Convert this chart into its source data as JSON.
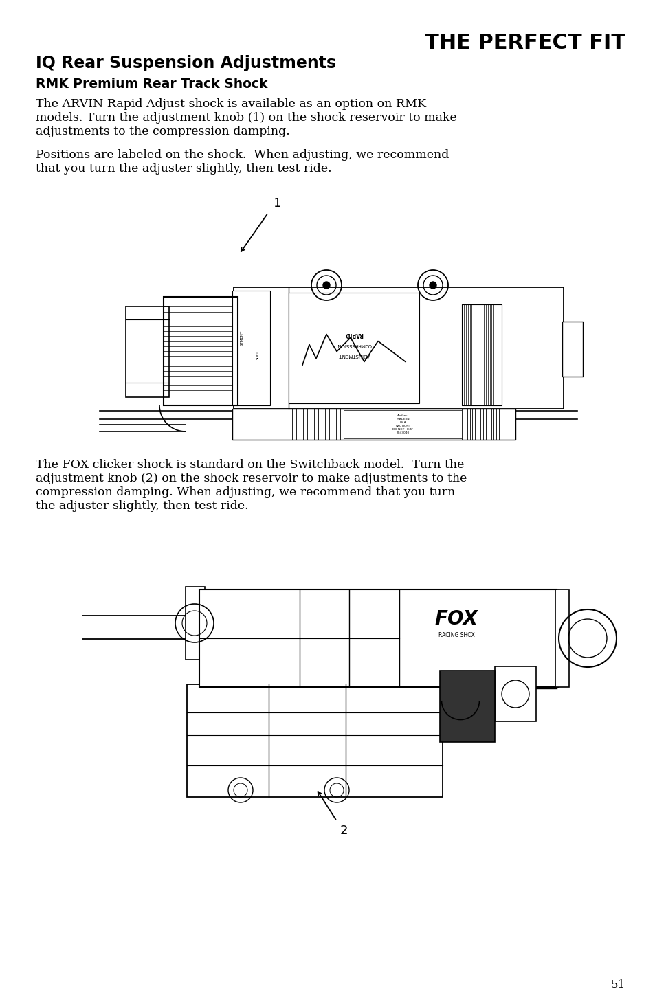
{
  "page_title": "THE PERFECT FIT",
  "section_title": "IQ Rear Suspension Adjustments",
  "subsection_title": "RMK Premium Rear Track Shock",
  "para1_line1": "The ARVIN Rapid Adjust shock is available as an option on RMK",
  "para1_line2": "models. Turn the adjustment knob (1) on the shock reservoir to make",
  "para1_line3": "adjustments to the compression damping.",
  "para2_line1": "Positions are labeled on the shock.  When adjusting, we recommend",
  "para2_line2": "that you turn the adjuster slightly, then test ride.",
  "para3_line1": "The FOX clicker shock is standard on the Switchback model.  Turn the",
  "para3_line2": "adjustment knob (2) on the shock reservoir to make adjustments to the",
  "para3_line3": "compression damping. When adjusting, we recommend that you turn",
  "para3_line4": "the adjuster slightly, then test ride.",
  "page_number": "51",
  "bg_color": "#ffffff",
  "text_color": "#000000"
}
